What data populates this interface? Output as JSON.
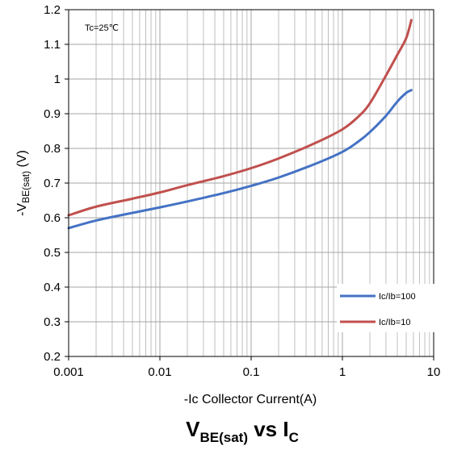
{
  "chart_data": {
    "type": "line",
    "title_main": "V",
    "title_main_sub": "BE(sat)",
    "title_vs": " vs I",
    "title_vs_sub": "C",
    "ylabel_main": "-V",
    "ylabel_sub": "BE(sat)",
    "ylabel_unit": " (V)",
    "xlabel": "-Ic Collector Current(A)",
    "xscale": "log",
    "xlim": [
      0.001,
      10
    ],
    "ylim": [
      0.2,
      1.2
    ],
    "x_ticks": [
      "0.001",
      "0.01",
      "0.1",
      "1",
      "10"
    ],
    "y_ticks": [
      "0.2",
      "0.3",
      "0.4",
      "0.5",
      "0.6",
      "0.7",
      "0.8",
      "0.9",
      "1",
      "1.1",
      "1.2"
    ],
    "grid": true,
    "annotation": "Tc=25℃",
    "legend_position": "bottom-right",
    "series": [
      {
        "name": "Ic/Ib=100",
        "color": "#4472C4",
        "x": [
          0.001,
          0.002,
          0.005,
          0.01,
          0.02,
          0.05,
          0.1,
          0.2,
          0.5,
          1,
          1.5,
          2,
          3,
          4,
          5,
          5.7
        ],
        "y": [
          0.57,
          0.592,
          0.614,
          0.63,
          0.647,
          0.671,
          0.692,
          0.716,
          0.755,
          0.79,
          0.82,
          0.847,
          0.894,
          0.935,
          0.96,
          0.968
        ]
      },
      {
        "name": "Ic/Ib=10",
        "color": "#C0504D",
        "x": [
          0.001,
          0.002,
          0.005,
          0.01,
          0.02,
          0.05,
          0.1,
          0.2,
          0.5,
          1,
          1.5,
          2,
          3,
          4,
          5,
          5.7
        ],
        "y": [
          0.607,
          0.632,
          0.655,
          0.673,
          0.694,
          0.72,
          0.743,
          0.771,
          0.815,
          0.855,
          0.892,
          0.93,
          1.01,
          1.07,
          1.118,
          1.17
        ]
      }
    ]
  }
}
